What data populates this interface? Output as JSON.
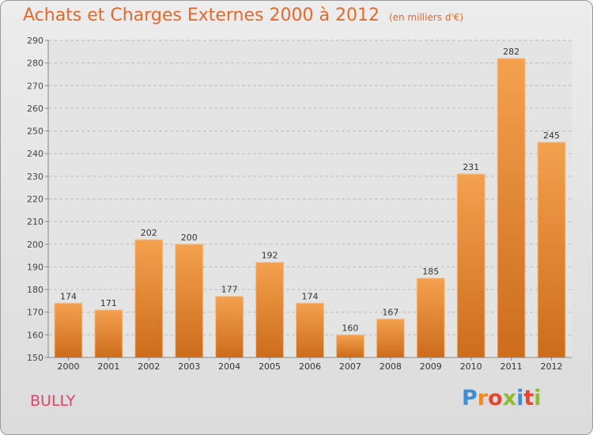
{
  "header": {
    "title": "Achats et Charges Externes 2000 à 2012",
    "subtitle": "(en milliers d'€)"
  },
  "commune": "BULLY",
  "logo": {
    "text": "Proxiti"
  },
  "colors": {
    "bar_top": "#f4a14f",
    "bar_bottom": "#cc6c1c",
    "title": "#e36a2a",
    "commune": "#e0446a"
  },
  "chart_data": {
    "type": "bar",
    "title": "Achats et Charges Externes 2000 à 2012",
    "subtitle": "(en milliers d'€)",
    "categories": [
      "2000",
      "2001",
      "2002",
      "2003",
      "2004",
      "2005",
      "2006",
      "2007",
      "2008",
      "2009",
      "2010",
      "2011",
      "2012"
    ],
    "values": [
      174,
      171,
      202,
      200,
      177,
      192,
      174,
      160,
      167,
      185,
      231,
      282,
      245
    ],
    "xlabel": "",
    "ylabel": "",
    "ylim": [
      150,
      290
    ],
    "yticks": [
      150,
      160,
      170,
      180,
      190,
      200,
      210,
      220,
      230,
      240,
      250,
      260,
      270,
      280,
      290
    ],
    "grid": "horizontal dashed",
    "data_labels": true
  }
}
